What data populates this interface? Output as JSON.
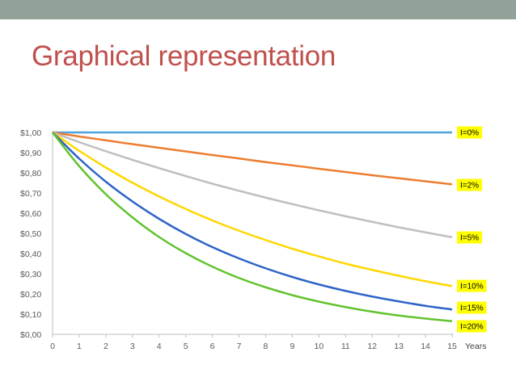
{
  "slide": {
    "title": "Graphical representation",
    "accent_bar_color": "#93a299",
    "title_color": "#c0504d"
  },
  "chart_data": {
    "type": "line",
    "x": [
      0,
      1,
      2,
      3,
      4,
      5,
      6,
      7,
      8,
      9,
      10,
      11,
      12,
      13,
      14,
      15
    ],
    "xlabel": "Years",
    "ylabel": "",
    "xlim": [
      0,
      15
    ],
    "ylim": [
      0,
      1
    ],
    "y_tick_labels": [
      "$0,00",
      "$0,10",
      "$0,20",
      "$0,30",
      "$0,40",
      "$0,50",
      "$0,60",
      "$0,70",
      "$0,80",
      "$0,90",
      "$1,00"
    ],
    "x_tick_labels": [
      "0",
      "1",
      "2",
      "3",
      "4",
      "5",
      "6",
      "7",
      "8",
      "9",
      "10",
      "11",
      "12",
      "13",
      "14",
      "15"
    ],
    "grid": false,
    "label_style": {
      "background": "#ffff00",
      "text_color": "#000000"
    },
    "series": [
      {
        "name": "I=0%",
        "color": "#4fa3dc",
        "values": [
          1,
          1,
          1,
          1,
          1,
          1,
          1,
          1,
          1,
          1,
          1,
          1,
          1,
          1,
          1,
          1
        ]
      },
      {
        "name": "I=2%",
        "color": "#ed7d31",
        "values": [
          1,
          0.98,
          0.961,
          0.942,
          0.924,
          0.906,
          0.888,
          0.871,
          0.853,
          0.837,
          0.82,
          0.804,
          0.788,
          0.773,
          0.758,
          0.743
        ]
      },
      {
        "name": "I=5%",
        "color": "#bfbfbf",
        "values": [
          1,
          0.952,
          0.907,
          0.864,
          0.823,
          0.784,
          0.746,
          0.711,
          0.677,
          0.645,
          0.614,
          0.585,
          0.557,
          0.53,
          0.505,
          0.481
        ]
      },
      {
        "name": "I=10%",
        "color": "#ffd700",
        "values": [
          1,
          0.909,
          0.826,
          0.751,
          0.683,
          0.621,
          0.564,
          0.513,
          0.467,
          0.424,
          0.386,
          0.35,
          0.319,
          0.29,
          0.263,
          0.239
        ]
      },
      {
        "name": "I=15%",
        "color": "#2e63c8",
        "values": [
          1,
          0.87,
          0.756,
          0.658,
          0.572,
          0.497,
          0.432,
          0.376,
          0.327,
          0.284,
          0.247,
          0.215,
          0.187,
          0.163,
          0.141,
          0.123
        ]
      },
      {
        "name": "I=20%",
        "color": "#62c32e",
        "values": [
          1,
          0.833,
          0.694,
          0.579,
          0.482,
          0.402,
          0.335,
          0.279,
          0.233,
          0.194,
          0.162,
          0.135,
          0.112,
          0.093,
          0.078,
          0.065
        ]
      }
    ]
  }
}
